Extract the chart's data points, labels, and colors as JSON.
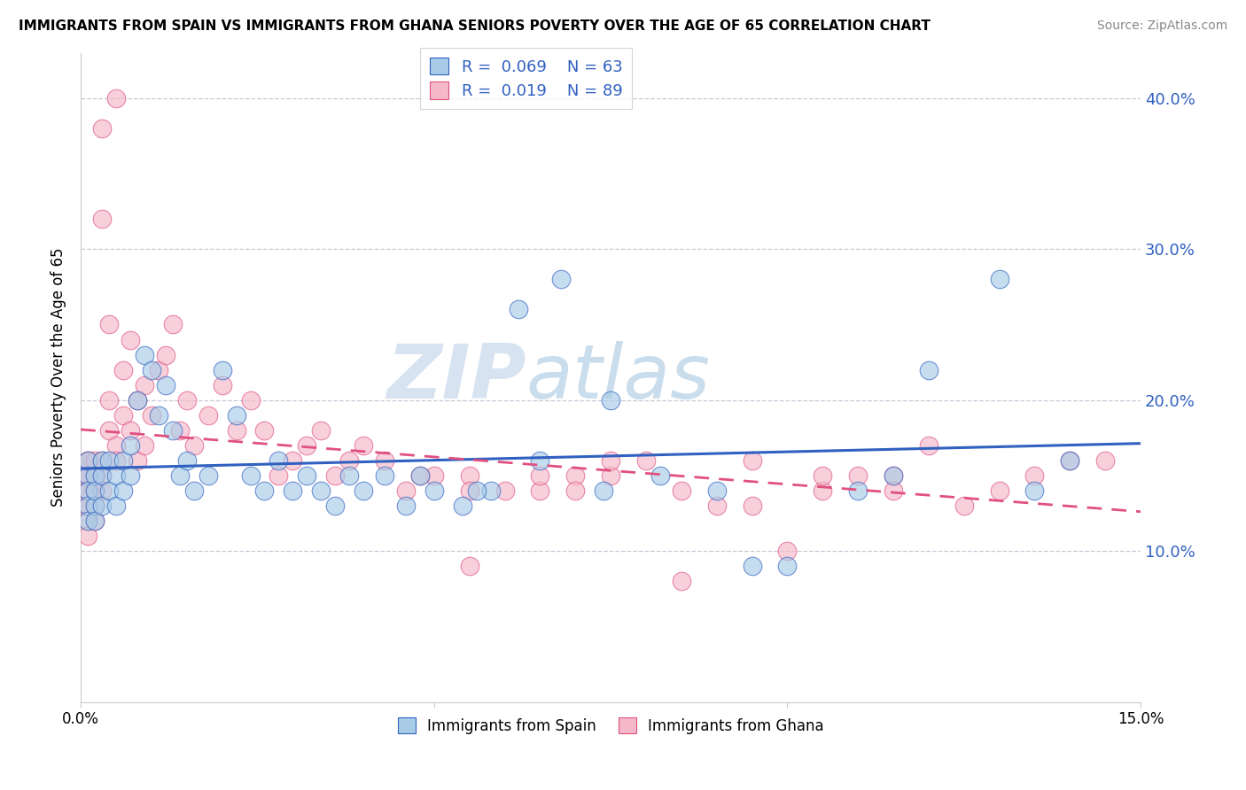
{
  "title": "IMMIGRANTS FROM SPAIN VS IMMIGRANTS FROM GHANA SENIORS POVERTY OVER THE AGE OF 65 CORRELATION CHART",
  "source": "Source: ZipAtlas.com",
  "ylabel": "Seniors Poverty Over the Age of 65",
  "y_ticks": [
    0.1,
    0.2,
    0.3,
    0.4
  ],
  "xlim": [
    0.0,
    0.15
  ],
  "ylim": [
    0.0,
    0.43
  ],
  "spain_R": "0.069",
  "spain_N": "63",
  "ghana_R": "0.019",
  "ghana_N": "89",
  "spain_color": "#a8cce8",
  "ghana_color": "#f4b8c8",
  "spain_line_color": "#3060c0",
  "ghana_line_color": "#e05080",
  "legend_labels": [
    "Immigrants from Spain",
    "Immigrants from Ghana"
  ],
  "grid_color": "#c8c8d8",
  "spain_x": [
    0.001,
    0.001,
    0.001,
    0.001,
    0.001,
    0.002,
    0.002,
    0.002,
    0.002,
    0.003,
    0.003,
    0.003,
    0.004,
    0.004,
    0.005,
    0.005,
    0.006,
    0.006,
    0.007,
    0.007,
    0.008,
    0.009,
    0.01,
    0.011,
    0.012,
    0.013,
    0.014,
    0.015,
    0.016,
    0.018,
    0.02,
    0.022,
    0.024,
    0.026,
    0.028,
    0.03,
    0.032,
    0.034,
    0.036,
    0.038,
    0.04,
    0.043,
    0.046,
    0.05,
    0.054,
    0.058,
    0.062,
    0.068,
    0.074,
    0.082,
    0.09,
    0.1,
    0.11,
    0.12,
    0.13,
    0.14,
    0.048,
    0.056,
    0.065,
    0.075,
    0.095,
    0.115,
    0.135
  ],
  "spain_y": [
    0.15,
    0.14,
    0.13,
    0.12,
    0.16,
    0.15,
    0.13,
    0.12,
    0.14,
    0.16,
    0.15,
    0.13,
    0.14,
    0.16,
    0.15,
    0.13,
    0.16,
    0.14,
    0.17,
    0.15,
    0.2,
    0.23,
    0.22,
    0.19,
    0.21,
    0.18,
    0.15,
    0.16,
    0.14,
    0.15,
    0.22,
    0.19,
    0.15,
    0.14,
    0.16,
    0.14,
    0.15,
    0.14,
    0.13,
    0.15,
    0.14,
    0.15,
    0.13,
    0.14,
    0.13,
    0.14,
    0.26,
    0.28,
    0.14,
    0.15,
    0.14,
    0.09,
    0.14,
    0.22,
    0.28,
    0.16,
    0.15,
    0.14,
    0.16,
    0.2,
    0.09,
    0.15,
    0.14
  ],
  "ghana_x": [
    0.001,
    0.001,
    0.001,
    0.001,
    0.001,
    0.001,
    0.001,
    0.001,
    0.001,
    0.001,
    0.001,
    0.001,
    0.002,
    0.002,
    0.002,
    0.002,
    0.002,
    0.002,
    0.002,
    0.003,
    0.003,
    0.003,
    0.003,
    0.003,
    0.004,
    0.004,
    0.004,
    0.005,
    0.005,
    0.005,
    0.006,
    0.006,
    0.007,
    0.007,
    0.008,
    0.008,
    0.009,
    0.009,
    0.01,
    0.011,
    0.012,
    0.013,
    0.014,
    0.015,
    0.016,
    0.018,
    0.02,
    0.022,
    0.024,
    0.026,
    0.028,
    0.03,
    0.032,
    0.034,
    0.036,
    0.038,
    0.04,
    0.043,
    0.046,
    0.05,
    0.055,
    0.06,
    0.065,
    0.07,
    0.075,
    0.08,
    0.09,
    0.1,
    0.11,
    0.12,
    0.13,
    0.14,
    0.048,
    0.07,
    0.055,
    0.065,
    0.085,
    0.095,
    0.105,
    0.115,
    0.125,
    0.135,
    0.145,
    0.055,
    0.075,
    0.085,
    0.095,
    0.105,
    0.115
  ],
  "ghana_y": [
    0.15,
    0.14,
    0.13,
    0.16,
    0.12,
    0.11,
    0.15,
    0.14,
    0.13,
    0.16,
    0.15,
    0.14,
    0.15,
    0.13,
    0.14,
    0.16,
    0.12,
    0.15,
    0.14,
    0.38,
    0.32,
    0.16,
    0.15,
    0.14,
    0.25,
    0.2,
    0.18,
    0.4,
    0.17,
    0.16,
    0.22,
    0.19,
    0.24,
    0.18,
    0.2,
    0.16,
    0.21,
    0.17,
    0.19,
    0.22,
    0.23,
    0.25,
    0.18,
    0.2,
    0.17,
    0.19,
    0.21,
    0.18,
    0.2,
    0.18,
    0.15,
    0.16,
    0.17,
    0.18,
    0.15,
    0.16,
    0.17,
    0.16,
    0.14,
    0.15,
    0.15,
    0.14,
    0.14,
    0.15,
    0.15,
    0.16,
    0.13,
    0.1,
    0.15,
    0.17,
    0.14,
    0.16,
    0.15,
    0.14,
    0.09,
    0.15,
    0.08,
    0.16,
    0.14,
    0.15,
    0.13,
    0.15,
    0.16,
    0.14,
    0.16,
    0.14,
    0.13,
    0.15,
    0.14
  ]
}
